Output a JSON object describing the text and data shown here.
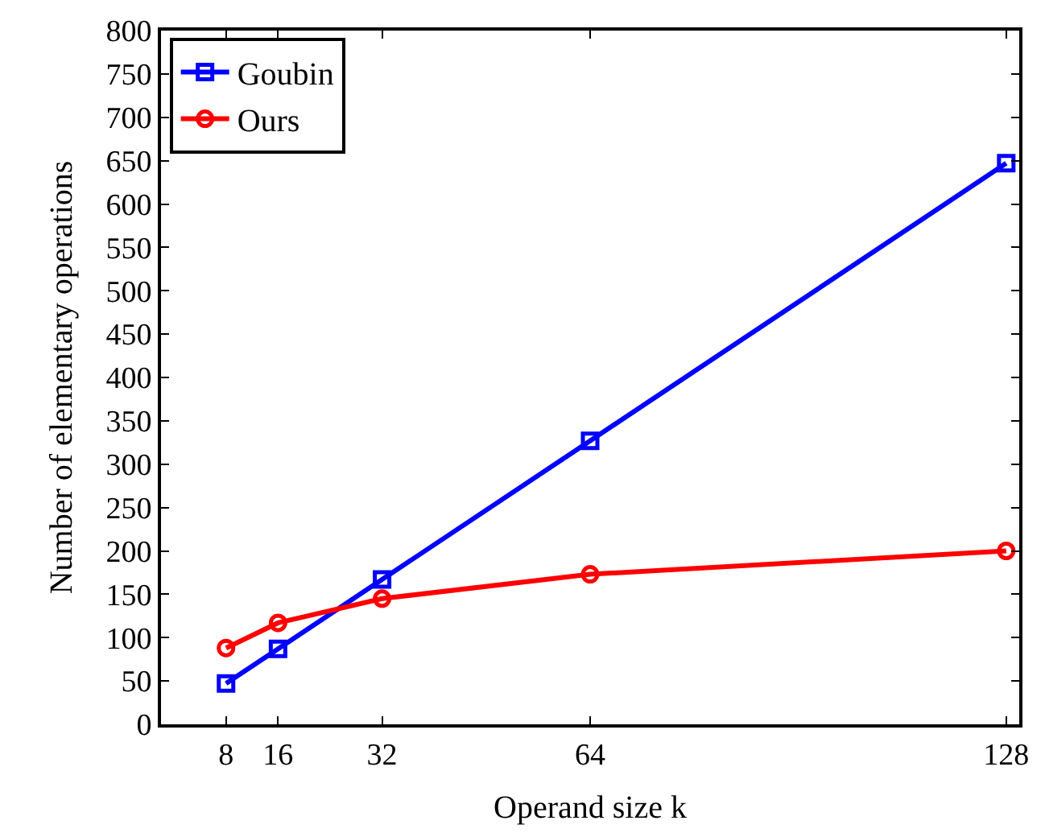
{
  "chart_data": {
    "type": "line",
    "xlabel": "Operand size k",
    "ylabel": "Number of elementary operations",
    "x": [
      8,
      16,
      32,
      64,
      128
    ],
    "series": [
      {
        "name": "Goubin",
        "color": "#0000ff",
        "marker": "square",
        "values": [
          47,
          87,
          167,
          327,
          647
        ]
      },
      {
        "name": "Ours",
        "color": "#ff0000",
        "marker": "circle",
        "values": [
          88,
          117,
          145,
          173,
          200
        ]
      }
    ],
    "xlim": [
      -2,
      130
    ],
    "xticks": [
      8,
      16,
      32,
      64,
      128
    ],
    "ylim": [
      0,
      800
    ],
    "yticks": [
      0,
      50,
      100,
      150,
      200,
      250,
      300,
      350,
      400,
      450,
      500,
      550,
      600,
      650,
      700,
      750,
      800
    ],
    "legend": "top left",
    "line_style": "solid"
  }
}
